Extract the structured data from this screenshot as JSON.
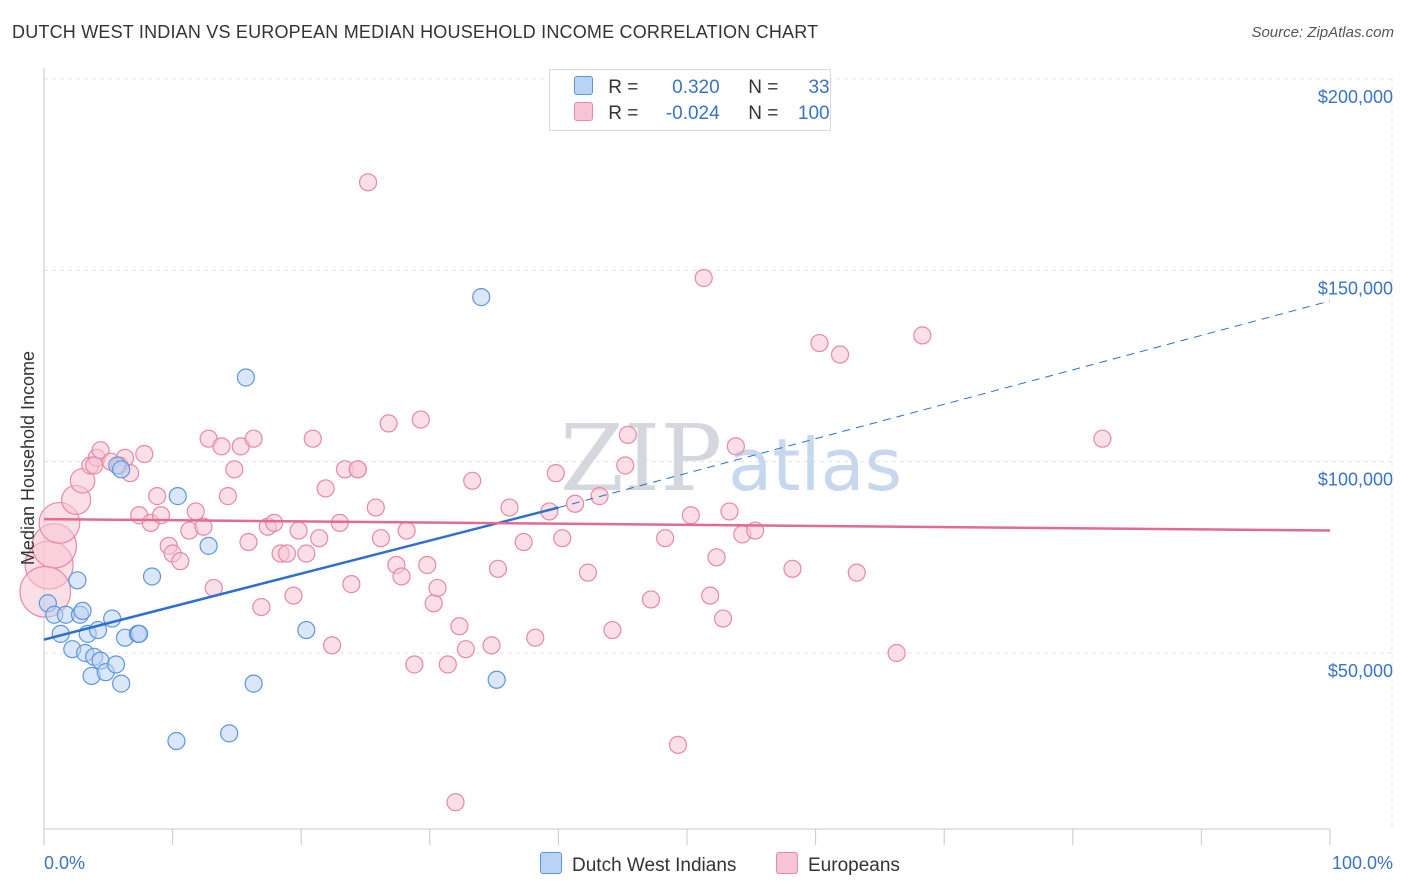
{
  "header": {
    "title": "DUTCH WEST INDIAN VS EUROPEAN MEDIAN HOUSEHOLD INCOME CORRELATION CHART",
    "source": "Source: ZipAtlas.com"
  },
  "legend": {
    "rows": [
      {
        "r_label": "R =",
        "r_value": "0.320",
        "n_label": "N =",
        "n_value": "33"
      },
      {
        "r_label": "R =",
        "r_value": "-0.024",
        "n_label": "N =",
        "n_value": "100"
      }
    ]
  },
  "bottom_legend": {
    "items": [
      {
        "label": "Dutch West Indians"
      },
      {
        "label": "Europeans"
      }
    ]
  },
  "colors": {
    "blue_fill": "#b9d3f4",
    "blue_stroke": "#5f95dc",
    "blue_line": "#2c6fcf",
    "pink_fill": "#f8c4d4",
    "pink_stroke": "#e887a6",
    "pink_line": "#e36a93",
    "tick_text": "#3a73c4",
    "grid": "#e2e2e2"
  },
  "chart_data": {
    "type": "scatter",
    "xlabel": "",
    "ylabel": "Median Household Income",
    "xlim": [
      0,
      100
    ],
    "ylim": [
      0,
      210000
    ],
    "x_tick_labels": [
      "0.0%",
      "100.0%"
    ],
    "y_ticks": [
      50000,
      100000,
      150000,
      200000
    ],
    "y_tick_labels": [
      "$50,000",
      "$100,000",
      "$150,000",
      "$200,000"
    ],
    "grid": true,
    "watermark": "ZIPatlas",
    "series": [
      {
        "name": "Dutch West Indians",
        "color": "blue",
        "trend": {
          "x0": 0,
          "y0": 53500,
          "x1": 40,
          "y1": 88000,
          "dashed_to_x": 100,
          "dashed_to_y": 142000
        },
        "points": [
          [
            0.3,
            63000
          ],
          [
            0.8,
            60000
          ],
          [
            1.3,
            55000
          ],
          [
            1.7,
            60000
          ],
          [
            2.2,
            51000
          ],
          [
            2.6,
            69000
          ],
          [
            2.8,
            60000
          ],
          [
            3.2,
            50000
          ],
          [
            3.4,
            55000
          ],
          [
            3.7,
            44000
          ],
          [
            3.9,
            49000
          ],
          [
            4.2,
            56000
          ],
          [
            4.4,
            48000
          ],
          [
            4.8,
            45000
          ],
          [
            5.3,
            59000
          ],
          [
            5.6,
            47000
          ],
          [
            6.3,
            54000
          ],
          [
            6.0,
            42000
          ],
          [
            7.3,
            55000
          ],
          [
            7.4,
            55000
          ],
          [
            8.4,
            70000
          ],
          [
            10.3,
            27000
          ],
          [
            10.4,
            91000
          ],
          [
            12.8,
            78000
          ],
          [
            14.4,
            29000
          ],
          [
            15.7,
            122000
          ],
          [
            16.3,
            42000
          ],
          [
            20.4,
            56000
          ],
          [
            34.0,
            143000
          ],
          [
            35.2,
            43000
          ],
          [
            5.7,
            99000
          ],
          [
            6.0,
            98000
          ],
          [
            3.0,
            61000
          ]
        ]
      },
      {
        "name": "Europeans",
        "color": "pink",
        "trend": {
          "x0": 0,
          "y0": 85000,
          "x1": 100,
          "y1": 82000
        },
        "points": [
          [
            0.4,
            73000
          ],
          [
            0.8,
            78000
          ],
          [
            1.2,
            84000
          ],
          [
            2.5,
            90000
          ],
          [
            3.0,
            95000
          ],
          [
            3.6,
            99000
          ],
          [
            4.1,
            101000
          ],
          [
            4.4,
            103000
          ],
          [
            5.2,
            100000
          ],
          [
            5.9,
            99000
          ],
          [
            6.3,
            101000
          ],
          [
            6.7,
            97000
          ],
          [
            7.4,
            86000
          ],
          [
            7.8,
            102000
          ],
          [
            8.3,
            84000
          ],
          [
            8.8,
            91000
          ],
          [
            9.1,
            86000
          ],
          [
            9.7,
            78000
          ],
          [
            10.0,
            76000
          ],
          [
            10.6,
            74000
          ],
          [
            11.3,
            82000
          ],
          [
            11.8,
            87000
          ],
          [
            12.4,
            83000
          ],
          [
            12.8,
            106000
          ],
          [
            13.2,
            67000
          ],
          [
            13.8,
            104000
          ],
          [
            14.3,
            91000
          ],
          [
            14.8,
            98000
          ],
          [
            15.3,
            104000
          ],
          [
            15.9,
            79000
          ],
          [
            16.3,
            106000
          ],
          [
            16.9,
            62000
          ],
          [
            17.4,
            83000
          ],
          [
            17.9,
            84000
          ],
          [
            18.4,
            76000
          ],
          [
            18.9,
            76000
          ],
          [
            19.4,
            65000
          ],
          [
            19.8,
            82000
          ],
          [
            20.4,
            76000
          ],
          [
            20.9,
            106000
          ],
          [
            21.4,
            80000
          ],
          [
            21.9,
            93000
          ],
          [
            22.4,
            52000
          ],
          [
            23.0,
            84000
          ],
          [
            23.4,
            98000
          ],
          [
            23.9,
            68000
          ],
          [
            24.4,
            98000
          ],
          [
            25.2,
            173000
          ],
          [
            25.8,
            88000
          ],
          [
            26.2,
            80000
          ],
          [
            26.8,
            110000
          ],
          [
            27.4,
            73000
          ],
          [
            27.8,
            70000
          ],
          [
            28.2,
            82000
          ],
          [
            28.8,
            47000
          ],
          [
            29.3,
            111000
          ],
          [
            29.8,
            73000
          ],
          [
            30.3,
            63000
          ],
          [
            30.6,
            67000
          ],
          [
            31.4,
            47000
          ],
          [
            32.3,
            57000
          ],
          [
            32.8,
            51000
          ],
          [
            33.3,
            95000
          ],
          [
            34.8,
            52000
          ],
          [
            35.3,
            72000
          ],
          [
            36.2,
            88000
          ],
          [
            37.3,
            79000
          ],
          [
            38.2,
            54000
          ],
          [
            39.3,
            87000
          ],
          [
            39.8,
            97000
          ],
          [
            40.3,
            80000
          ],
          [
            41.3,
            89000
          ],
          [
            42.3,
            71000
          ],
          [
            43.2,
            91000
          ],
          [
            44.2,
            56000
          ],
          [
            45.2,
            99000
          ],
          [
            45.4,
            107000
          ],
          [
            47.2,
            64000
          ],
          [
            48.3,
            80000
          ],
          [
            49.3,
            26000
          ],
          [
            50.3,
            86000
          ],
          [
            51.3,
            148000
          ],
          [
            51.8,
            65000
          ],
          [
            52.3,
            75000
          ],
          [
            52.8,
            59000
          ],
          [
            53.3,
            87000
          ],
          [
            53.8,
            104000
          ],
          [
            54.3,
            81000
          ],
          [
            55.3,
            82000
          ],
          [
            58.2,
            72000
          ],
          [
            60.3,
            131000
          ],
          [
            61.9,
            128000
          ],
          [
            63.2,
            71000
          ],
          [
            66.3,
            50000
          ],
          [
            68.3,
            133000
          ],
          [
            82.3,
            106000
          ],
          [
            32.0,
            11000
          ],
          [
            24.4,
            98000
          ],
          [
            3.9,
            99000
          ],
          [
            0.1,
            66000
          ]
        ]
      }
    ]
  }
}
